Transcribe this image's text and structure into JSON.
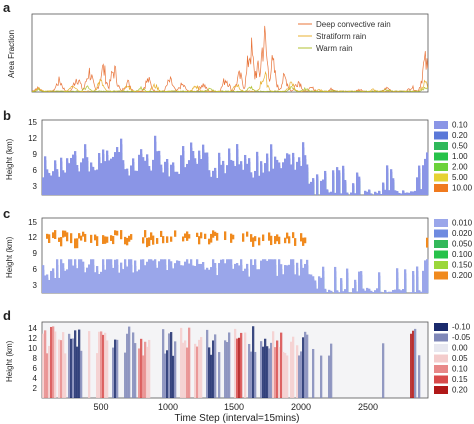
{
  "chart_data": [
    {
      "panel": "a",
      "type": "line",
      "ylabel": "Area Fraction",
      "xlim": [
        0,
        2900
      ],
      "ylim": [
        0,
        0.7
      ],
      "legend_position": "top-right",
      "series": [
        {
          "name": "Deep convective rain",
          "color": "#e8743a",
          "peaks": [
            [
              40,
              0.05
            ],
            [
              200,
              0.14
            ],
            [
              330,
              0.19
            ],
            [
              420,
              0.26
            ],
            [
              520,
              0.3
            ],
            [
              600,
              0.28
            ],
            [
              700,
              0.12
            ],
            [
              850,
              0.15
            ],
            [
              1010,
              0.14
            ],
            [
              1100,
              0.09
            ],
            [
              1250,
              0.1
            ],
            [
              1420,
              0.17
            ],
            [
              1520,
              0.2
            ],
            [
              1600,
              0.55
            ],
            [
              1650,
              0.3
            ],
            [
              1700,
              0.68
            ],
            [
              1760,
              0.35
            ],
            [
              1850,
              0.18
            ],
            [
              1950,
              0.14
            ],
            [
              2050,
              0.05
            ],
            [
              2200,
              0.04
            ],
            [
              2400,
              0.03
            ],
            [
              2600,
              0.05
            ],
            [
              2780,
              0.06
            ],
            [
              2880,
              0.38
            ]
          ]
        },
        {
          "name": "Stratiform rain",
          "color": "#e8b030",
          "peaks": [
            [
              50,
              0.04
            ],
            [
              300,
              0.1
            ],
            [
              500,
              0.13
            ],
            [
              700,
              0.07
            ],
            [
              900,
              0.08
            ],
            [
              1200,
              0.07
            ],
            [
              1500,
              0.1
            ],
            [
              1700,
              0.21
            ],
            [
              1900,
              0.1
            ],
            [
              2100,
              0.03
            ],
            [
              2500,
              0.03
            ],
            [
              2880,
              0.12
            ]
          ]
        },
        {
          "name": "Warm rain",
          "color": "#b0c030",
          "peaks": [
            [
              50,
              0.03
            ],
            [
              400,
              0.06
            ],
            [
              800,
              0.05
            ],
            [
              1300,
              0.04
            ],
            [
              1600,
              0.06
            ],
            [
              1900,
              0.05
            ],
            [
              2000,
              0.04
            ],
            [
              2200,
              0.02
            ],
            [
              2600,
              0.03
            ],
            [
              2880,
              0.05
            ]
          ]
        }
      ]
    },
    {
      "panel": "b",
      "type": "heatmap",
      "ylabel": "Height (km)",
      "yticks": [
        "3",
        "6",
        "9",
        "12",
        "15"
      ],
      "colorbar": [
        {
          "label": "0.10",
          "color": "#8a95e6"
        },
        {
          "label": "0.20",
          "color": "#5a78d8"
        },
        {
          "label": "0.50",
          "color": "#2fb85a"
        },
        {
          "label": "1.00",
          "color": "#27c24a"
        },
        {
          "label": "2.00",
          "color": "#6cd23a"
        },
        {
          "label": "5.00",
          "color": "#e6d233"
        },
        {
          "label": "10.00",
          "color": "#f07a1e"
        }
      ]
    },
    {
      "panel": "c",
      "type": "heatmap",
      "ylabel": "Height (km)",
      "yticks": [
        "3",
        "6",
        "9",
        "12",
        "15"
      ],
      "colorbar": [
        {
          "label": "0.010",
          "color": "#9aa6ea"
        },
        {
          "label": "0.020",
          "color": "#6e8ae0"
        },
        {
          "label": "0.050",
          "color": "#33b85a"
        },
        {
          "label": "0.100",
          "color": "#27c24a"
        },
        {
          "label": "0.150",
          "color": "#9bd73a"
        },
        {
          "label": "0.200",
          "color": "#f08a1e"
        }
      ]
    },
    {
      "panel": "d",
      "type": "heatmap",
      "ylabel": "Height (km)",
      "yticks": [
        "2",
        "4",
        "6",
        "8",
        "10",
        "12",
        "14"
      ],
      "colorbar": [
        {
          "label": "-0.10",
          "color": "#1a2a6c"
        },
        {
          "label": "-0.05",
          "color": "#8088b8"
        },
        {
          "label": "0.00",
          "color": "#e8e8f0"
        },
        {
          "label": "0.05",
          "color": "#f4cccc"
        },
        {
          "label": "0.10",
          "color": "#e88888"
        },
        {
          "label": "0.15",
          "color": "#d84a4a"
        },
        {
          "label": "0.20",
          "color": "#b01818"
        }
      ]
    }
  ],
  "x_axis": {
    "label": "Time Step (interval=15mins)",
    "ticks": [
      "500",
      "1000",
      "1500",
      "2000",
      "2500"
    ],
    "tick_values": [
      500,
      1000,
      1500,
      2000,
      2500
    ],
    "range": [
      0,
      2900
    ]
  },
  "panel_labels": [
    "a",
    "b",
    "c",
    "d"
  ]
}
